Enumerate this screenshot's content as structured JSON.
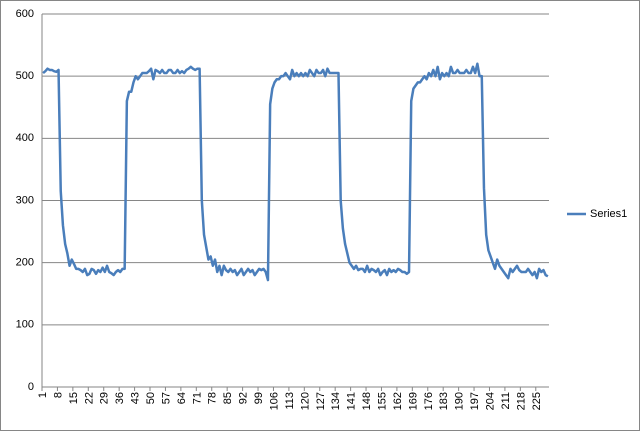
{
  "chart_data": {
    "type": "line",
    "categories": [
      1,
      null,
      null,
      null,
      null,
      null,
      null,
      8,
      null,
      null,
      null,
      null,
      null,
      null,
      15,
      null,
      null,
      null,
      null,
      null,
      null,
      22,
      null,
      null,
      null,
      null,
      null,
      null,
      29,
      null,
      null,
      null,
      null,
      null,
      null,
      36,
      null,
      null,
      null,
      null,
      null,
      null,
      43,
      null,
      null,
      null,
      null,
      null,
      null,
      50,
      null,
      null,
      null,
      null,
      null,
      null,
      57,
      null,
      null,
      null,
      null,
      null,
      null,
      64,
      null,
      null,
      null,
      null,
      null,
      null,
      71,
      null,
      null,
      null,
      null,
      null,
      null,
      78,
      null,
      null,
      null,
      null,
      null,
      null,
      85,
      null,
      null,
      null,
      null,
      null,
      null,
      92,
      null,
      null,
      null,
      null,
      null,
      null,
      99,
      null,
      null,
      null,
      null,
      null,
      null,
      106,
      null,
      null,
      null,
      null,
      null,
      null,
      113,
      null,
      null,
      null,
      null,
      null,
      null,
      120,
      null,
      null,
      null,
      null,
      null,
      null,
      127,
      null,
      null,
      null,
      null,
      null,
      null,
      134,
      null,
      null,
      null,
      null,
      null,
      null,
      141,
      null,
      null,
      null,
      null,
      null,
      null,
      148,
      null,
      null,
      null,
      null,
      null,
      null,
      155,
      null,
      null,
      null,
      null,
      null,
      null,
      162,
      null,
      null,
      null,
      null,
      null,
      null,
      169,
      null,
      null,
      null,
      null,
      null,
      null,
      176,
      null,
      null,
      null,
      null,
      null,
      null,
      183,
      null,
      null,
      null,
      null,
      null,
      null,
      190,
      null,
      null,
      null,
      null,
      null,
      null,
      197,
      null,
      null,
      null,
      null,
      null,
      null,
      204,
      null,
      null,
      null,
      null,
      null,
      null,
      211,
      null,
      null,
      null,
      null,
      null,
      null,
      218,
      null,
      null,
      null,
      null,
      null,
      null,
      225,
      null,
      null,
      null,
      null,
      null
    ],
    "series": [
      {
        "name": "Series1",
        "color": "#4a7ebb",
        "values": [
          505,
          508,
          512,
          510,
          510,
          508,
          507,
          510,
          315,
          260,
          230,
          215,
          195,
          205,
          198,
          190,
          190,
          188,
          185,
          190,
          180,
          182,
          190,
          188,
          182,
          188,
          185,
          192,
          185,
          195,
          185,
          183,
          180,
          185,
          188,
          185,
          190,
          190,
          460,
          475,
          475,
          490,
          500,
          495,
          500,
          505,
          505,
          505,
          508,
          512,
          495,
          510,
          508,
          505,
          510,
          505,
          505,
          510,
          510,
          505,
          505,
          510,
          505,
          508,
          505,
          510,
          512,
          515,
          512,
          510,
          512,
          512,
          300,
          245,
          225,
          205,
          210,
          195,
          205,
          185,
          195,
          180,
          195,
          188,
          185,
          190,
          185,
          188,
          180,
          185,
          190,
          180,
          185,
          190,
          185,
          188,
          180,
          185,
          190,
          188,
          190,
          185,
          172,
          455,
          480,
          490,
          495,
          495,
          500,
          500,
          505,
          500,
          495,
          510,
          500,
          505,
          500,
          505,
          500,
          505,
          500,
          510,
          505,
          500,
          510,
          505,
          505,
          510,
          500,
          512,
          505,
          505,
          505,
          505,
          505,
          300,
          255,
          230,
          215,
          200,
          195,
          190,
          195,
          188,
          190,
          190,
          185,
          195,
          185,
          190,
          188,
          185,
          190,
          180,
          185,
          188,
          180,
          190,
          185,
          188,
          185,
          190,
          188,
          185,
          185,
          182,
          185,
          460,
          480,
          485,
          490,
          490,
          495,
          500,
          495,
          505,
          500,
          510,
          500,
          515,
          495,
          505,
          500,
          505,
          500,
          515,
          505,
          505,
          510,
          505,
          505,
          505,
          510,
          505,
          505,
          515,
          505,
          520,
          500,
          500,
          320,
          245,
          220,
          210,
          200,
          190,
          205,
          195,
          190,
          185,
          180,
          175,
          190,
          185,
          190,
          195,
          188,
          185,
          185,
          185,
          190,
          185,
          180,
          185,
          175,
          190,
          185,
          188,
          180,
          178
        ]
      }
    ],
    "ylim": [
      0,
      600
    ],
    "yticks": [
      0,
      100,
      200,
      300,
      400,
      500,
      600
    ],
    "grid": true,
    "legend": "right"
  }
}
